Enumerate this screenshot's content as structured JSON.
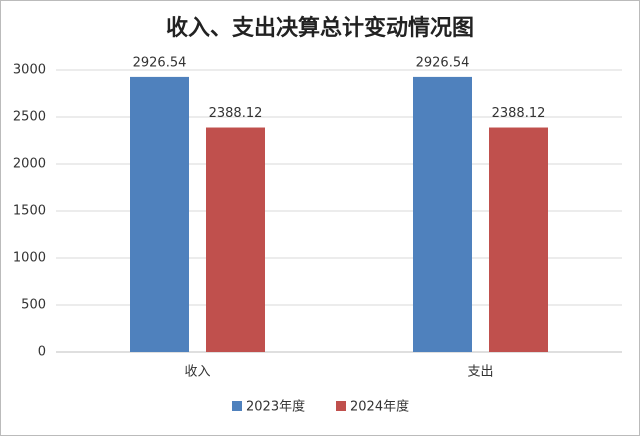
{
  "chart_data": {
    "type": "bar",
    "title": "收入、支出决算总计变动情况图",
    "categories": [
      "收入",
      "支出"
    ],
    "series": [
      {
        "name": "2023年度",
        "color": "#4f81bd",
        "values": [
          2926.54,
          2926.54
        ]
      },
      {
        "name": "2024年度",
        "color": "#c0504d",
        "values": [
          2388.12,
          2388.12
        ]
      }
    ],
    "ylim": [
      0,
      3000
    ],
    "yticks": [
      0,
      500,
      1000,
      1500,
      2000,
      2500,
      3000
    ],
    "grid": true,
    "legend": "bottom"
  }
}
